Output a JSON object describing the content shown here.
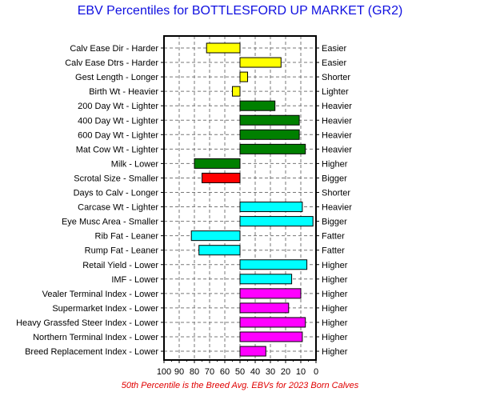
{
  "chart_data": {
    "type": "bar",
    "title": "EBV Percentiles for BOTTLESFORD UP MARKET (GR2)",
    "footnote": "50th Percentile is the Breed Avg. EBVs for 2023 Born Calves",
    "xlim": [
      100,
      0
    ],
    "baseline": 50,
    "xticks": [
      "100",
      "90",
      "80",
      "70",
      "60",
      "50",
      "40",
      "30",
      "20",
      "10",
      "0"
    ],
    "grid": true,
    "rows": [
      {
        "label": "Calv Ease Dir - Harder",
        "right": "Easier",
        "value": 72,
        "color": "#ffff00"
      },
      {
        "label": "Calv Ease Dtrs - Harder",
        "right": "Easier",
        "value": 23,
        "color": "#ffff00"
      },
      {
        "label": "Gest Length - Longer",
        "right": "Shorter",
        "value": 45,
        "color": "#ffff00"
      },
      {
        "label": "Birth Wt - Heavier",
        "right": "Lighter",
        "value": 55,
        "color": "#ffff00"
      },
      {
        "label": "200 Day Wt - Lighter",
        "right": "Heavier",
        "value": 27,
        "color": "#008000"
      },
      {
        "label": "400 Day Wt - Lighter",
        "right": "Heavier",
        "value": 11,
        "color": "#008000"
      },
      {
        "label": "600 Day Wt - Lighter",
        "right": "Heavier",
        "value": 11,
        "color": "#008000"
      },
      {
        "label": "Mat Cow Wt - Lighter",
        "right": "Heavier",
        "value": 7,
        "color": "#008000"
      },
      {
        "label": "Milk - Lower",
        "right": "Higher",
        "value": 80,
        "color": "#008000"
      },
      {
        "label": "Scrotal Size - Smaller",
        "right": "Bigger",
        "value": 75,
        "color": "#ff0000"
      },
      {
        "label": "Days to Calv - Longer",
        "right": "Shorter",
        "value": 50,
        "color": "#ff0000"
      },
      {
        "label": "Carcase Wt - Lighter",
        "right": "Heavier",
        "value": 9,
        "color": "#00ffff"
      },
      {
        "label": "Eye Musc Area - Smaller",
        "right": "Bigger",
        "value": 2,
        "color": "#00ffff"
      },
      {
        "label": "Rib Fat - Leaner",
        "right": "Fatter",
        "value": 82,
        "color": "#00ffff"
      },
      {
        "label": "Rump Fat - Leaner",
        "right": "Fatter",
        "value": 77,
        "color": "#00ffff"
      },
      {
        "label": "Retail Yield - Lower",
        "right": "Higher",
        "value": 6,
        "color": "#00ffff"
      },
      {
        "label": "IMF - Lower",
        "right": "Higher",
        "value": 16,
        "color": "#00ffff"
      },
      {
        "label": "Vealer Terminal Index - Lower",
        "right": "Higher",
        "value": 10,
        "color": "#ff00ff"
      },
      {
        "label": "Supermarket Index - Lower",
        "right": "Higher",
        "value": 18,
        "color": "#ff00ff"
      },
      {
        "label": "Heavy Grassfed Steer Index - Lower",
        "right": "Higher",
        "value": 7,
        "color": "#ff00ff"
      },
      {
        "label": "Northern Terminal Index - Lower",
        "right": "Higher",
        "value": 9,
        "color": "#ff00ff"
      },
      {
        "label": "Breed Replacement Index - Lower",
        "right": "Higher",
        "value": 33,
        "color": "#ff00ff"
      }
    ]
  }
}
